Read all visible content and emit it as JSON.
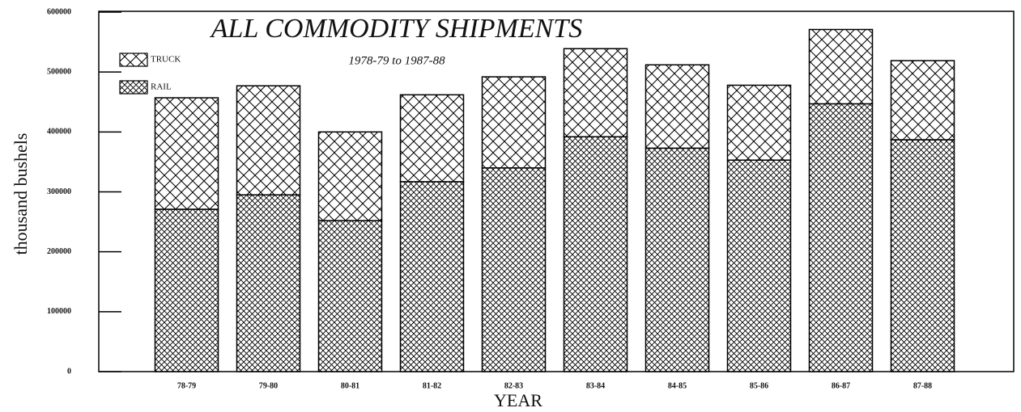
{
  "chart_data": {
    "type": "stacked-bar",
    "title": "ALL COMMODITY SHIPMENTS",
    "subtitle": "1978-79 to 1987-88",
    "x_label": "YEAR",
    "y_label": "thousand bushels",
    "categories": [
      "78-79",
      "79-80",
      "80-81",
      "81-82",
      "82-83",
      "83-84",
      "84-85",
      "85-86",
      "86-87",
      "87-88"
    ],
    "series": [
      {
        "name": "RAIL",
        "color": "#000000",
        "pattern": "dense-crosshatch",
        "values": [
          271000,
          295000,
          252000,
          317000,
          340000,
          392000,
          373000,
          353000,
          447000,
          387000
        ]
      },
      {
        "name": "TRUCK",
        "color": "#000000",
        "pattern": "crosshatch",
        "values": [
          186000,
          182000,
          148000,
          145000,
          152000,
          147000,
          139000,
          125000,
          124000,
          132000
        ]
      }
    ],
    "ylim": [
      0,
      600000
    ],
    "yticks": [
      0,
      100000,
      200000,
      300000,
      400000,
      500000,
      600000
    ],
    "legend": "top-left"
  }
}
